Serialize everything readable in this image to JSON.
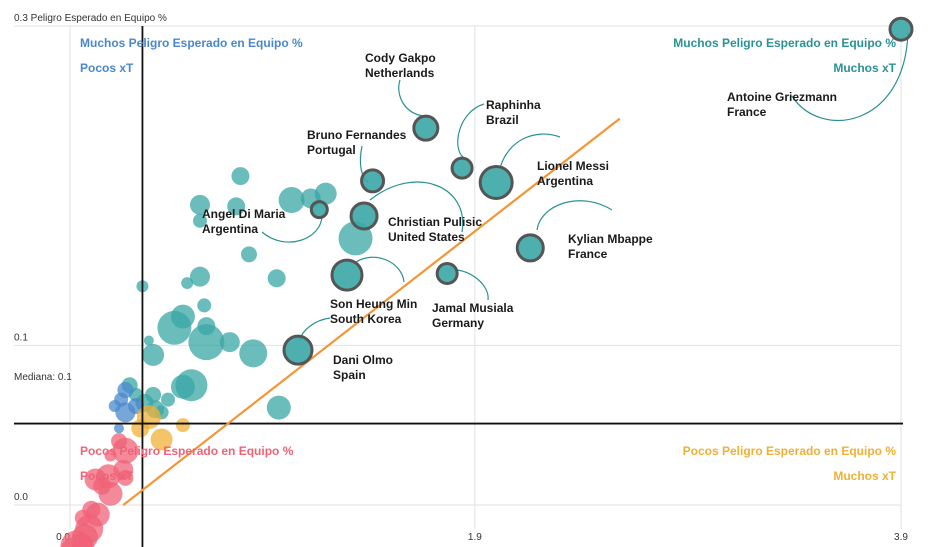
{
  "colors": {
    "teal": "#3aa7a6",
    "blue": "#4a88cc",
    "gold": "#f0b035",
    "pink": "#f06277",
    "trend": "#f59535",
    "leader": "#2a9294",
    "highlight_stroke": "#555555",
    "grid": "#e2e2e2",
    "axis": "#111111"
  },
  "chart_data": {
    "type": "scatter",
    "xlabel": "",
    "ylabel": "Peligro Esperado en Equipo %",
    "x_ticks": [
      {
        "value": 0.0,
        "label": "0.0 xT"
      },
      {
        "value": 1.9,
        "label": "1.9"
      },
      {
        "value": 3.9,
        "label": "3.9"
      }
    ],
    "y_ticks": [
      {
        "value": 0.0,
        "label": "0.0"
      },
      {
        "value": 0.1,
        "label": "0.1"
      },
      {
        "value": 0.3,
        "label": "0.3 Peligro Esperado en Equipo %"
      }
    ],
    "xlim": [
      0,
      3.9
    ],
    "ylim": [
      0,
      0.3
    ],
    "median": {
      "x": 0.34,
      "y": 0.051,
      "y_label": "Mediana: 0.1"
    },
    "grid": true,
    "trendline": [
      [
        0.25,
        0.0
      ],
      [
        2.58,
        0.242
      ]
    ],
    "quadrant_labels": {
      "top_left": {
        "line1": "Muchos Peligro Esperado en Equipo %",
        "line2": "Pocos xT",
        "color": "#4a88cc"
      },
      "top_right": {
        "line1": "Muchos Peligro Esperado en Equipo %",
        "line2": "Muchos xT",
        "color": "#2a9294"
      },
      "bottom_left": {
        "line1": "Pocos Peligro Esperado en Equipo %",
        "line2": "Pocos xT",
        "color": "#f06277"
      },
      "bottom_right": {
        "line1": "Pocos Peligro Esperado en Equipo %",
        "line2": "Muchos xT",
        "color": "#f0b035"
      }
    },
    "highlighted": [
      {
        "name": "Antoine Griezmann",
        "team": "France",
        "x": 3.9,
        "y": 0.298,
        "r": 11,
        "label_side": "left"
      },
      {
        "name": "Cody Gakpo",
        "team": "Netherlands",
        "x": 1.67,
        "y": 0.236,
        "r": 12,
        "label_side": "top"
      },
      {
        "name": "Raphinha",
        "team": "Brazil",
        "x": 1.84,
        "y": 0.211,
        "r": 10,
        "label_side": "right"
      },
      {
        "name": "Lionel Messi",
        "team": "Argentina",
        "x": 2.0,
        "y": 0.202,
        "r": 16,
        "label_side": "right"
      },
      {
        "name": "Bruno Fernandes",
        "team": "Portugal",
        "x": 1.42,
        "y": 0.203,
        "r": 11,
        "label_side": "left"
      },
      {
        "name": "Angel Di Maria",
        "team": "Argentina",
        "x": 1.17,
        "y": 0.185,
        "r": 8,
        "label_side": "left"
      },
      {
        "name": "Christian Pulisic",
        "team": "United States",
        "x": 1.38,
        "y": 0.181,
        "r": 13,
        "label_side": "right"
      },
      {
        "name": "Kylian Mbappe",
        "team": "France",
        "x": 2.16,
        "y": 0.161,
        "r": 13,
        "label_side": "right"
      },
      {
        "name": "Jamal Musiala",
        "team": "Germany",
        "x": 1.77,
        "y": 0.145,
        "r": 10,
        "label_side": "right"
      },
      {
        "name": "Son Heung Min",
        "team": "South Korea",
        "x": 1.3,
        "y": 0.144,
        "r": 15,
        "label_side": "right"
      },
      {
        "name": "Dani Olmo",
        "team": "Spain",
        "x": 1.07,
        "y": 0.097,
        "r": 14,
        "label_side": "right"
      }
    ],
    "points": [
      {
        "x": 0.8,
        "y": 0.206,
        "r": 9,
        "group": "teal"
      },
      {
        "x": 0.61,
        "y": 0.188,
        "r": 10,
        "group": "teal"
      },
      {
        "x": 0.78,
        "y": 0.187,
        "r": 9,
        "group": "teal"
      },
      {
        "x": 1.04,
        "y": 0.191,
        "r": 13,
        "group": "teal"
      },
      {
        "x": 1.13,
        "y": 0.192,
        "r": 10,
        "group": "teal"
      },
      {
        "x": 1.2,
        "y": 0.195,
        "r": 11,
        "group": "teal"
      },
      {
        "x": 0.61,
        "y": 0.178,
        "r": 7,
        "group": "teal"
      },
      {
        "x": 0.84,
        "y": 0.157,
        "r": 8,
        "group": "teal"
      },
      {
        "x": 0.61,
        "y": 0.143,
        "r": 10,
        "group": "teal"
      },
      {
        "x": 0.97,
        "y": 0.142,
        "r": 9,
        "group": "teal"
      },
      {
        "x": 0.55,
        "y": 0.139,
        "r": 6,
        "group": "teal"
      },
      {
        "x": 0.34,
        "y": 0.137,
        "r": 6,
        "group": "teal"
      },
      {
        "x": 1.34,
        "y": 0.167,
        "r": 17,
        "group": "teal"
      },
      {
        "x": 0.53,
        "y": 0.118,
        "r": 12,
        "group": "teal"
      },
      {
        "x": 0.63,
        "y": 0.125,
        "r": 7,
        "group": "teal"
      },
      {
        "x": 0.49,
        "y": 0.111,
        "r": 17,
        "group": "teal"
      },
      {
        "x": 0.64,
        "y": 0.112,
        "r": 9,
        "group": "teal"
      },
      {
        "x": 0.64,
        "y": 0.102,
        "r": 18,
        "group": "teal"
      },
      {
        "x": 0.75,
        "y": 0.102,
        "r": 10,
        "group": "teal"
      },
      {
        "x": 0.86,
        "y": 0.095,
        "r": 14,
        "group": "teal"
      },
      {
        "x": 0.39,
        "y": 0.094,
        "r": 11,
        "group": "teal"
      },
      {
        "x": 0.37,
        "y": 0.103,
        "r": 5,
        "group": "teal"
      },
      {
        "x": 0.57,
        "y": 0.075,
        "r": 16,
        "group": "teal"
      },
      {
        "x": 0.98,
        "y": 0.061,
        "r": 12,
        "group": "teal"
      },
      {
        "x": 0.53,
        "y": 0.074,
        "r": 12,
        "group": "teal"
      },
      {
        "x": 0.46,
        "y": 0.066,
        "r": 7,
        "group": "teal"
      },
      {
        "x": 0.28,
        "y": 0.075,
        "r": 8,
        "group": "teal"
      },
      {
        "x": 0.31,
        "y": 0.069,
        "r": 7,
        "group": "teal"
      },
      {
        "x": 0.39,
        "y": 0.069,
        "r": 8,
        "group": "teal"
      },
      {
        "x": 0.35,
        "y": 0.064,
        "r": 9,
        "group": "teal"
      },
      {
        "x": 0.43,
        "y": 0.058,
        "r": 7,
        "group": "teal"
      },
      {
        "x": 0.4,
        "y": 0.06,
        "r": 9,
        "group": "teal"
      },
      {
        "x": 0.26,
        "y": 0.072,
        "r": 8,
        "group": "blue"
      },
      {
        "x": 0.24,
        "y": 0.066,
        "r": 7,
        "group": "blue"
      },
      {
        "x": 0.21,
        "y": 0.062,
        "r": 6,
        "group": "blue"
      },
      {
        "x": 0.26,
        "y": 0.058,
        "r": 10,
        "group": "blue"
      },
      {
        "x": 0.31,
        "y": 0.062,
        "r": 8,
        "group": "blue"
      },
      {
        "x": 0.23,
        "y": 0.048,
        "r": 5,
        "group": "blue"
      },
      {
        "x": 0.37,
        "y": 0.055,
        "r": 12,
        "group": "gold"
      },
      {
        "x": 0.33,
        "y": 0.048,
        "r": 9,
        "group": "gold"
      },
      {
        "x": 0.43,
        "y": 0.041,
        "r": 11,
        "group": "gold"
      },
      {
        "x": 0.53,
        "y": 0.05,
        "r": 7,
        "group": "gold"
      },
      {
        "x": 0.23,
        "y": 0.04,
        "r": 8,
        "group": "pink"
      },
      {
        "x": 0.26,
        "y": 0.034,
        "r": 13,
        "group": "pink"
      },
      {
        "x": 0.19,
        "y": 0.031,
        "r": 6,
        "group": "pink"
      },
      {
        "x": 0.25,
        "y": 0.022,
        "r": 10,
        "group": "pink"
      },
      {
        "x": 0.18,
        "y": 0.018,
        "r": 12,
        "group": "pink"
      },
      {
        "x": 0.26,
        "y": 0.017,
        "r": 8,
        "group": "pink"
      },
      {
        "x": 0.12,
        "y": 0.016,
        "r": 11,
        "group": "pink"
      },
      {
        "x": 0.15,
        "y": 0.012,
        "r": 9,
        "group": "pink"
      },
      {
        "x": 0.19,
        "y": 0.007,
        "r": 12,
        "group": "pink"
      },
      {
        "x": 0.1,
        "y": -0.003,
        "r": 9,
        "group": "pink"
      },
      {
        "x": 0.13,
        "y": -0.006,
        "r": 12,
        "group": "pink"
      },
      {
        "x": 0.06,
        "y": -0.008,
        "r": 8,
        "group": "pink"
      },
      {
        "x": 0.09,
        "y": -0.015,
        "r": 14,
        "group": "pink"
      },
      {
        "x": 0.07,
        "y": -0.02,
        "r": 13,
        "group": "pink"
      },
      {
        "x": 0.03,
        "y": -0.026,
        "r": 16,
        "group": "pink"
      },
      {
        "x": 0.06,
        "y": -0.025,
        "r": 11,
        "group": "pink"
      },
      {
        "x": 0.02,
        "y": -0.029,
        "r": 14,
        "group": "pink"
      },
      {
        "x": 0.01,
        "y": -0.034,
        "r": 12,
        "group": "pink"
      },
      {
        "x": 0.04,
        "y": -0.031,
        "r": 10,
        "group": "pink"
      }
    ]
  }
}
